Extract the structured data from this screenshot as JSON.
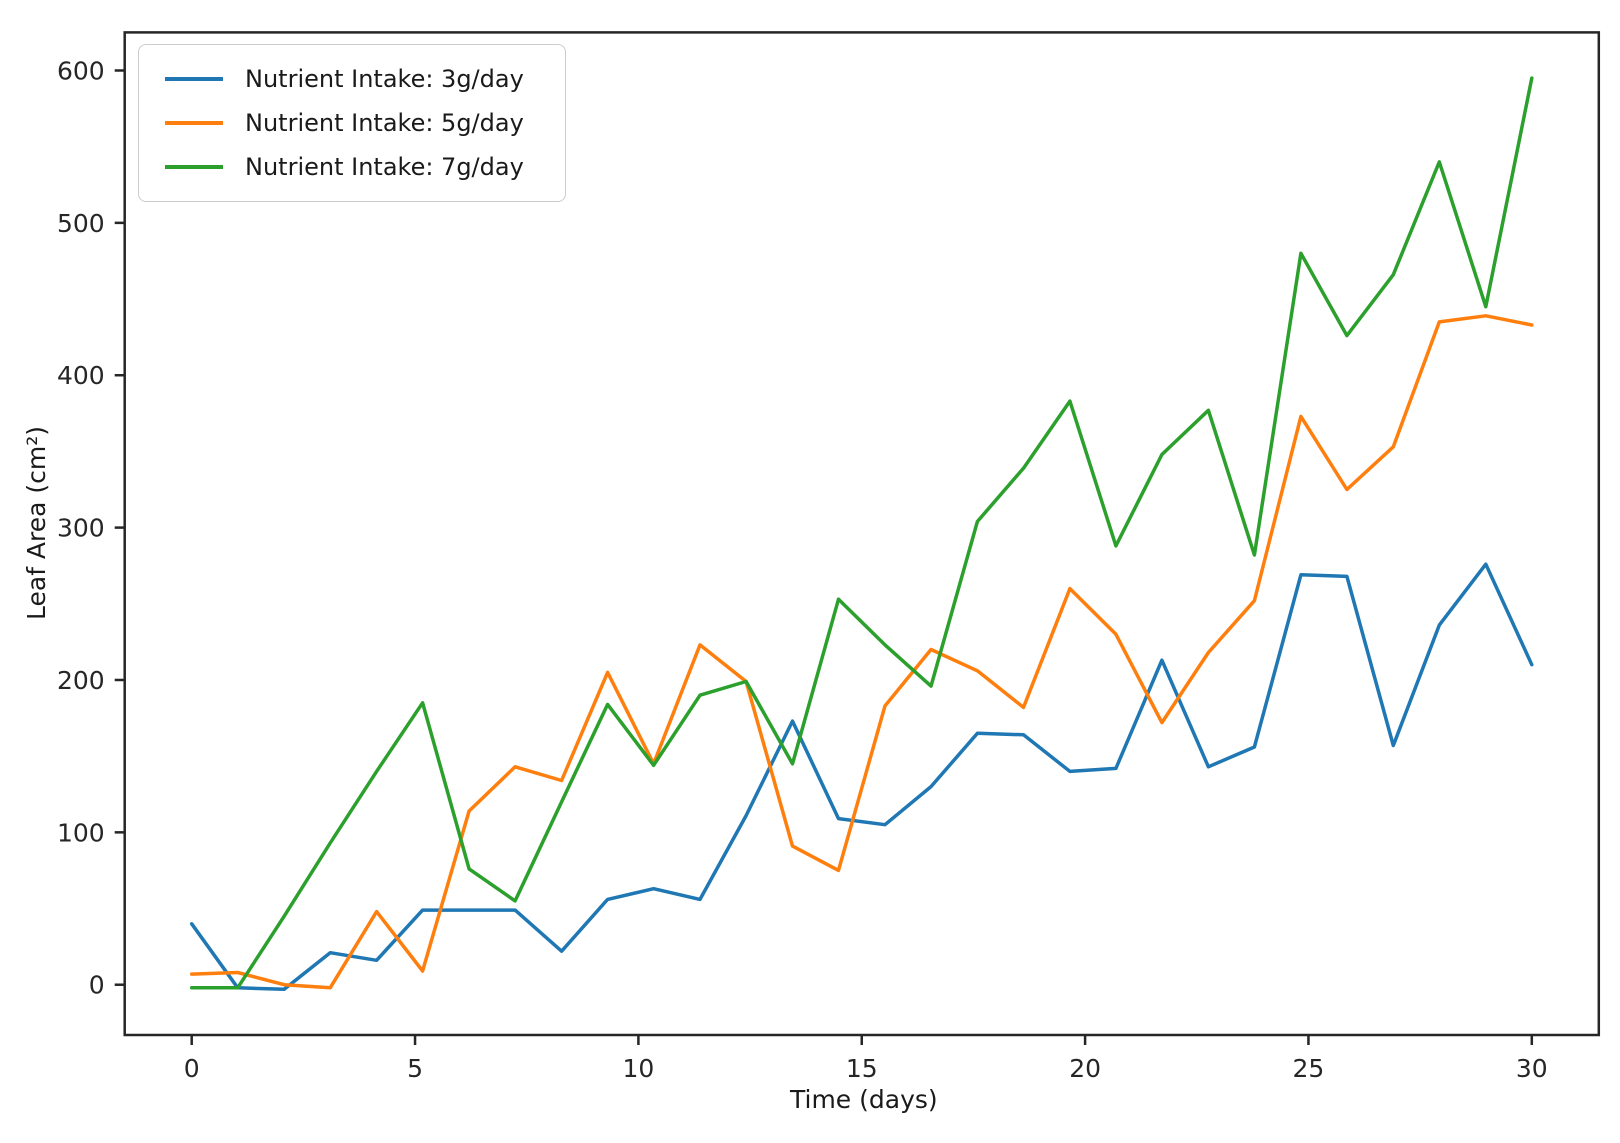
{
  "chart_data": {
    "type": "line",
    "title": "",
    "xlabel": "Time (days)",
    "ylabel": "Leaf Area (cm²)",
    "x": [
      0,
      1.03,
      2.07,
      3.1,
      4.14,
      5.17,
      6.21,
      7.24,
      8.28,
      9.31,
      10.34,
      11.38,
      12.41,
      13.45,
      14.48,
      15.52,
      16.55,
      17.59,
      18.62,
      19.66,
      20.69,
      21.72,
      22.76,
      23.79,
      24.83,
      25.86,
      26.9,
      27.93,
      28.97,
      30
    ],
    "series": [
      {
        "name": "Nutrient Intake: 3g/day",
        "color": "#1f77b4",
        "values": [
          40,
          -2,
          -3,
          21,
          16,
          49,
          49,
          49,
          22,
          56,
          63,
          56,
          111,
          173,
          109,
          105,
          130,
          165,
          164,
          140,
          142,
          213,
          143,
          156,
          269,
          268,
          157,
          236,
          276,
          210
        ]
      },
      {
        "name": "Nutrient Intake: 5g/day",
        "color": "#ff7f0e",
        "values": [
          7,
          8,
          0,
          -2,
          48,
          9,
          114,
          143,
          134,
          205,
          145,
          223,
          199,
          91,
          75,
          183,
          220,
          206,
          182,
          260,
          230,
          172,
          218,
          252,
          373,
          325,
          353,
          435,
          439,
          433
        ]
      },
      {
        "name": "Nutrient Intake: 7g/day",
        "color": "#2ca02c",
        "values": [
          -2,
          -2,
          45,
          93,
          140,
          185,
          76,
          55,
          120,
          184,
          144,
          190,
          199,
          145,
          253,
          223,
          196,
          304,
          339,
          383,
          288,
          348,
          377,
          282,
          480,
          426,
          466,
          540,
          445,
          595
        ]
      }
    ],
    "xticks": [
      0,
      5,
      10,
      15,
      20,
      25,
      30
    ],
    "yticks": [
      0,
      100,
      200,
      300,
      400,
      500,
      600
    ],
    "xlim": [
      -1.5,
      31.5
    ],
    "ylim": [
      -33,
      625
    ],
    "grid": false,
    "legend_position": "upper left",
    "line_width": 3.5,
    "spine_color": "#262626",
    "tick_label_color": "#262626",
    "tick_font_size": 25
  }
}
